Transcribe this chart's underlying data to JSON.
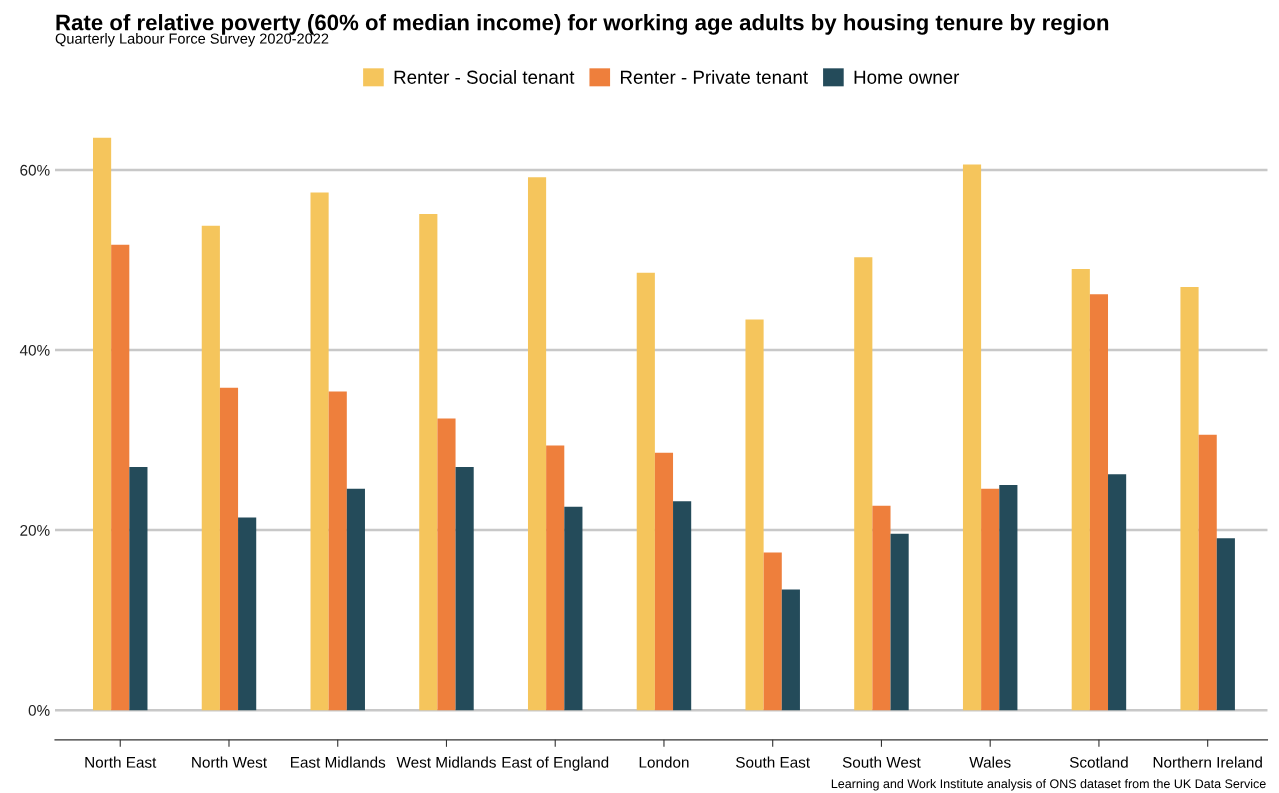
{
  "chart_data": {
    "type": "bar",
    "title": "Rate of relative poverty (60% of median income) for working age adults by housing tenure by region",
    "subtitle": "Quarterly Labour Force Survey 2020-2022",
    "categories": [
      "North East",
      "North West",
      "East Midlands",
      "West Midlands",
      "East of England",
      "London",
      "South East",
      "South West",
      "Wales",
      "Scotland",
      "Northern Ireland"
    ],
    "series": [
      {
        "name": "Renter - Social tenant",
        "color": "#f5c55c",
        "values": [
          63.6,
          53.8,
          57.5,
          55.1,
          59.2,
          48.6,
          43.4,
          50.3,
          60.6,
          49.0,
          47.0
        ]
      },
      {
        "name": "Renter - Private tenant",
        "color": "#ee7f3c",
        "values": [
          51.7,
          35.8,
          35.4,
          32.4,
          29.4,
          28.6,
          17.5,
          22.7,
          24.6,
          46.2,
          30.6
        ]
      },
      {
        "name": "Home owner",
        "color": "#244b5a",
        "values": [
          27.0,
          21.4,
          24.6,
          27.0,
          22.6,
          23.2,
          13.4,
          19.6,
          25.0,
          26.2,
          19.1
        ]
      }
    ],
    "ylim": [
      -3.3,
      63.6
    ],
    "yticks": [
      {
        "value": 0,
        "label": "0%"
      },
      {
        "value": 20,
        "label": "20%"
      },
      {
        "value": 40,
        "label": "40%"
      },
      {
        "value": 60,
        "label": "60%"
      }
    ],
    "grid": "y",
    "legend": "top",
    "annotations": [
      "Learning and Work Institute analysis of ONS dataset from the UK Data Service"
    ]
  }
}
